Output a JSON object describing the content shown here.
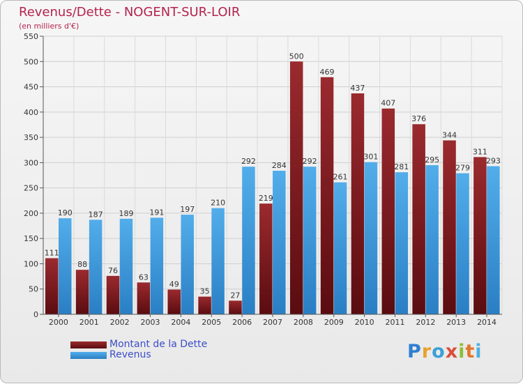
{
  "chart_data": {
    "type": "bar",
    "title": "Revenus/Dette - NOGENT-SUR-LOIR",
    "subtitle": "(en milliers d'€)",
    "categories": [
      "2000",
      "2001",
      "2002",
      "2003",
      "2004",
      "2005",
      "2006",
      "2007",
      "2008",
      "2009",
      "2010",
      "2011",
      "2012",
      "2013",
      "2014"
    ],
    "series": [
      {
        "name": "Montant de la Dette",
        "color": "#8b2023",
        "values": [
          111,
          88,
          76,
          63,
          49,
          35,
          27,
          219,
          500,
          469,
          437,
          407,
          376,
          344,
          311
        ]
      },
      {
        "name": "Revenus",
        "color": "#3f9fe3",
        "values": [
          190,
          187,
          189,
          191,
          197,
          210,
          292,
          284,
          292,
          261,
          301,
          281,
          295,
          279,
          293
        ]
      }
    ],
    "ylim": [
      0,
      550
    ],
    "yticks": [
      0,
      50,
      100,
      150,
      200,
      250,
      300,
      350,
      400,
      450,
      500,
      550
    ],
    "grid": true,
    "legend": "bottom-left"
  },
  "logo": {
    "letters": [
      "P",
      "r",
      "o",
      "x",
      "i",
      "t",
      "i"
    ]
  }
}
